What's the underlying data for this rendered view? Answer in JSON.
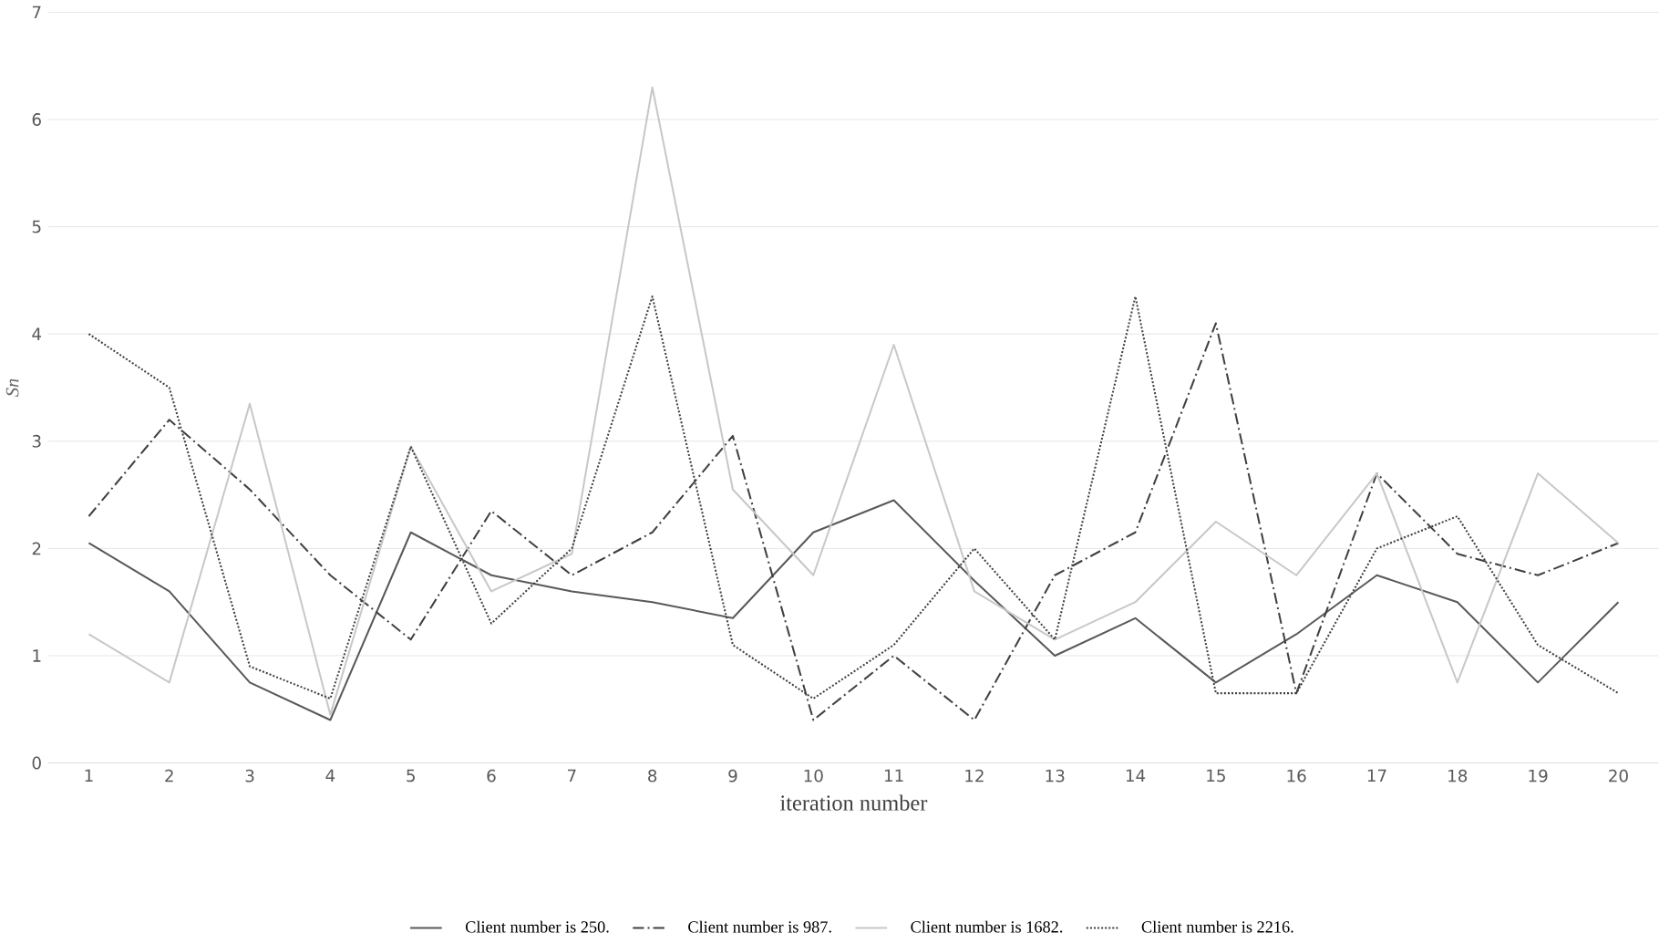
{
  "chart_data": {
    "type": "line",
    "xlabel": "iteration number",
    "ylabel": "*Sn*",
    "categories": [
      "1",
      "2",
      "3",
      "4",
      "5",
      "6",
      "7",
      "8",
      "9",
      "10",
      "11",
      "12",
      "13",
      "14",
      "15",
      "16",
      "17",
      "18",
      "19",
      "20"
    ],
    "ylim": [
      0,
      7
    ],
    "yticks": [
      0,
      1,
      2,
      3,
      4,
      5,
      6,
      7
    ],
    "grid": "y",
    "legend": "bottom",
    "marker": "none",
    "series": [
      {
        "name": "Client number is 250.",
        "color": "#595959",
        "line_style": "solid",
        "values": [
          2.05,
          1.6,
          0.75,
          0.4,
          2.15,
          1.75,
          1.6,
          1.5,
          1.35,
          2.15,
          2.45,
          1.7,
          1.0,
          1.35,
          0.75,
          1.2,
          1.75,
          1.5,
          0.75,
          1.5
        ]
      },
      {
        "name": "Client number is 987.",
        "color": "#404040",
        "line_style": "dashdot",
        "values": [
          2.3,
          3.2,
          2.55,
          1.75,
          1.15,
          2.35,
          1.75,
          2.15,
          3.05,
          0.4,
          1.0,
          0.4,
          1.75,
          2.15,
          4.1,
          0.65,
          2.7,
          1.95,
          1.75,
          2.05
        ]
      },
      {
        "name": "Client number is 1682.",
        "color": "#c8c8c8",
        "line_style": "solid",
        "values": [
          1.2,
          0.75,
          3.35,
          0.45,
          2.95,
          1.6,
          1.95,
          6.3,
          2.55,
          1.75,
          3.9,
          1.6,
          1.15,
          1.5,
          2.25,
          1.75,
          2.7,
          0.75,
          2.7,
          2.05
        ]
      },
      {
        "name": "Client number is 2216.",
        "color": "#404040",
        "line_style": "dotted",
        "values": [
          4.0,
          3.5,
          0.9,
          0.6,
          2.95,
          1.3,
          2.0,
          4.35,
          1.1,
          0.6,
          1.1,
          2.0,
          1.15,
          4.35,
          0.65,
          0.65,
          2.0,
          2.3,
          1.1,
          0.65
        ]
      }
    ]
  }
}
